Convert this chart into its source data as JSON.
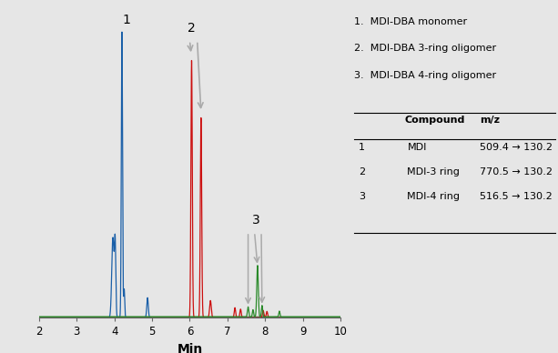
{
  "xlabel": "Min",
  "xlim": [
    2,
    10
  ],
  "ylim": [
    0,
    1.05
  ],
  "bg_color": "#e6e6e6",
  "legend_labels": [
    "1.  MDI-DBA monomer",
    "2.  MDI-DBA 3-ring oligomer",
    "3.  MDI-DBA 4-ring oligomer"
  ],
  "table": {
    "rows": [
      [
        "1",
        "MDI",
        "509.4 → 130.2"
      ],
      [
        "2",
        "MDI-3 ring",
        "770.5 → 130.2"
      ],
      [
        "3",
        "MDI-4 ring",
        "516.5 → 130.2"
      ]
    ]
  },
  "blue_color": "#1a5fa8",
  "red_color": "#cc1010",
  "green_color": "#2a8a2a",
  "arrow_color": "#aaaaaa"
}
